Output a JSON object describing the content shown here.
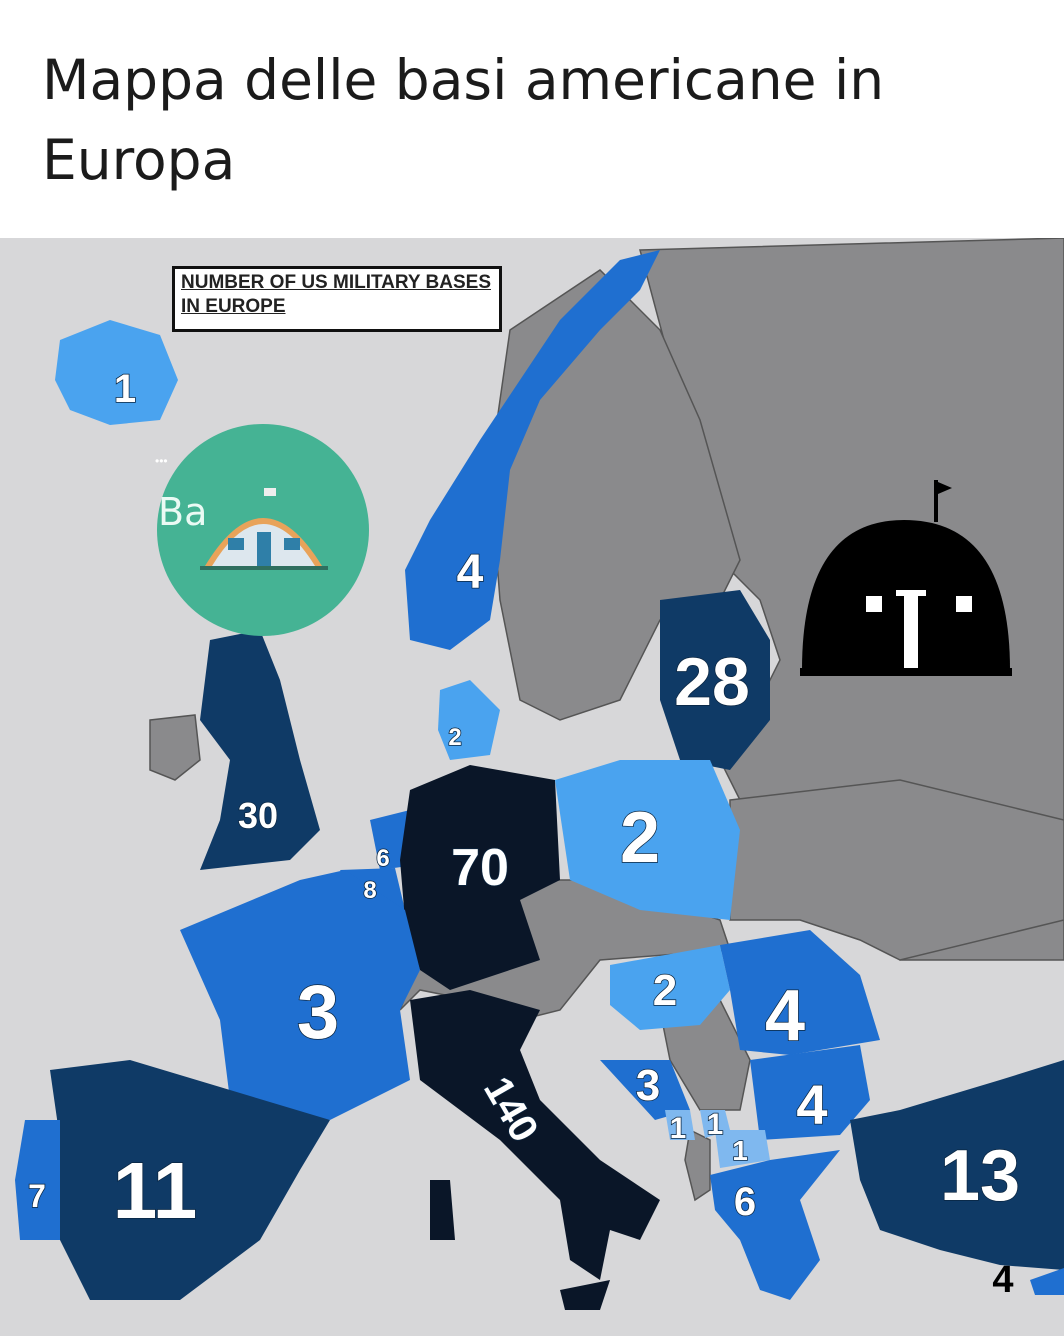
{
  "title": "Mappa delle basi americane in Europa",
  "legend": {
    "title": "NUMBER OF US MILITARY BASES IN EUROPE"
  },
  "overlay_badge": {
    "text": "Ba",
    "dots": "•••"
  },
  "colors": {
    "sea": "#d7d7d9",
    "land_other": "#8a8a8c",
    "light_blue": "#4aa3ef",
    "pale_blue": "#7fb8ef",
    "medium_blue": "#1f6fd0",
    "dark_blue": "#0f3a66",
    "darkest": "#0a1628",
    "badge_green": "#45b394",
    "dome_icon": "#000000"
  },
  "icons": [
    "quonset-hut-badge-icon",
    "quonset-hut-black-icon"
  ],
  "countries": {
    "iceland": "1",
    "norway": "4",
    "baltics": "28",
    "uk": "30",
    "denmark": "2",
    "netherlands": "6",
    "belgium": "8",
    "germany": "70",
    "poland": "2",
    "france": "3",
    "hungary": "2",
    "romania": "4",
    "bulgaria": "4",
    "bosnia": "3",
    "montenegro": "1",
    "kosovo": "1",
    "macedonia": "1",
    "greece": "6",
    "italy": "140",
    "spain": "11",
    "portugal": "7",
    "turkey": "13",
    "cyprus": "4"
  }
}
